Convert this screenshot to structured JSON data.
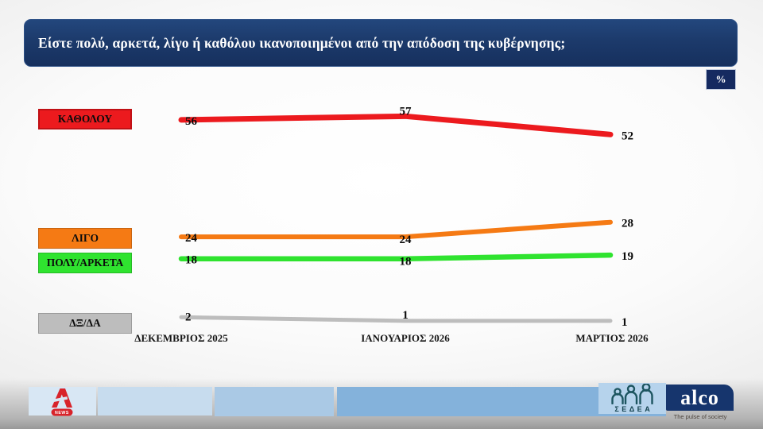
{
  "chart_data": {
    "type": "line",
    "title": "Είστε πολύ, αρκετά, λίγο ή καθόλου ικανοποιημένοι από την απόδοση της κυβέρνησης;",
    "unit": "%",
    "categories": [
      "ΔΕΚΕΜΒΡΙΟΣ 2025",
      "ΙΑΝΟΥΑΡΙΟΣ 2026",
      "ΜΑΡΤΙΟΣ 2026"
    ],
    "series": [
      {
        "name": "ΚΑΘΟΛΟΥ",
        "values": [
          56,
          57,
          52
        ],
        "color": "#ec1a1e"
      },
      {
        "name": "ΛΙΓΟ",
        "values": [
          24,
          24,
          28
        ],
        "color": "#f57a14"
      },
      {
        "name": "ΠΟΛΥ/ΑΡΚΕΤΑ",
        "values": [
          18,
          18,
          19
        ],
        "color": "#2fe32f"
      },
      {
        "name": "ΔΞ/ΔΑ",
        "values": [
          2,
          1,
          1
        ],
        "color": "#bdbdbd"
      }
    ],
    "xlabel": "",
    "ylabel": "",
    "ylim": [
      0,
      62
    ],
    "grid": false,
    "legend_position": "left",
    "data_labels": true
  },
  "footer": {
    "alpha_news": {
      "label": "NEWS"
    },
    "sedea": {
      "label": "ΣΕΔΕΑ"
    },
    "alco": {
      "label": "alco",
      "tagline": "The pulse of society"
    }
  }
}
